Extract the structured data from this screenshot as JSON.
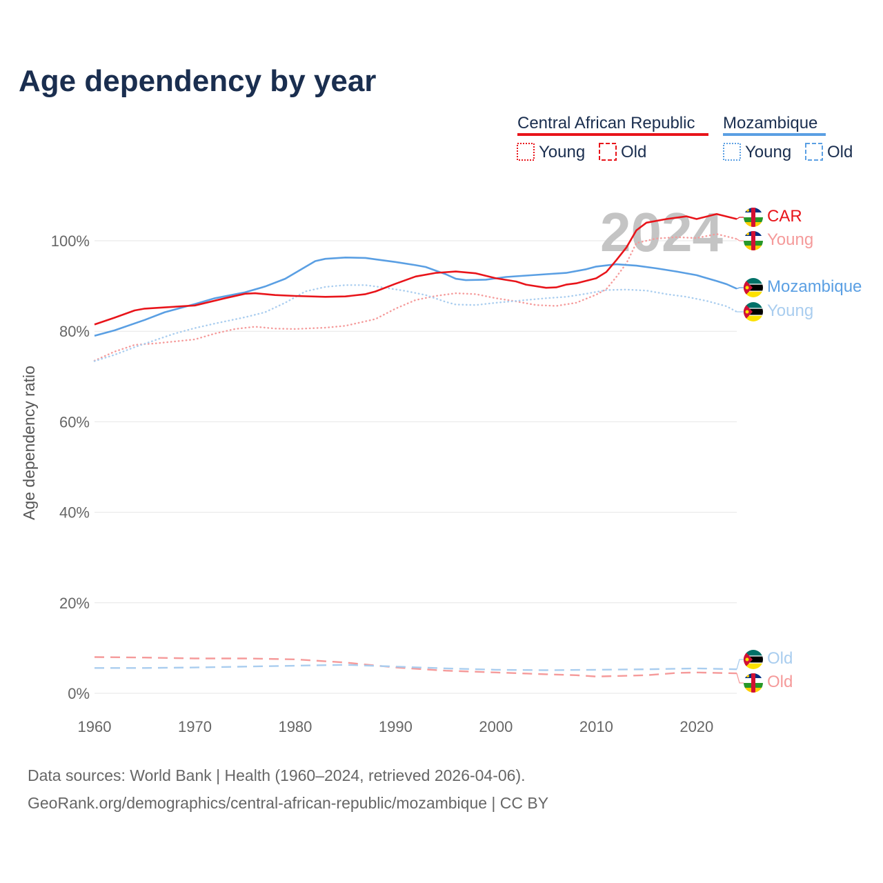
{
  "title": "Age dependency by year",
  "colors": {
    "car": "#e8141a",
    "car_light": "#f59a9a",
    "moz": "#5a9fe3",
    "moz_light": "#a9cdef",
    "grid": "#e6e6e6",
    "title": "#1a2e4f"
  },
  "legend": {
    "groups": [
      {
        "name": "Central African Republic",
        "key": "car",
        "young": "Young",
        "old": "Old"
      },
      {
        "name": "Mozambique",
        "key": "moz",
        "young": "Young",
        "old": "Old"
      }
    ]
  },
  "year_display": "2024",
  "end_labels": {
    "car_total": "CAR",
    "car_young": "Young",
    "moz_total": "Mozambique",
    "moz_young": "Young",
    "moz_old": "Old",
    "car_old": "Old"
  },
  "icons": {
    "car_flag": "central-african-republic-flag-icon",
    "moz_flag": "mozambique-flag-icon"
  },
  "source": {
    "line1": "Data sources: World Bank | Health (1960–2024, retrieved 2026-04-06).",
    "line2": "GeoRank.org/demographics/central-african-republic/mozambique | CC BY"
  },
  "chart_data": {
    "type": "line",
    "title": "Age dependency by year",
    "xlabel": "",
    "ylabel": "Age dependency ratio",
    "xlim": [
      1960,
      2024
    ],
    "ylim": [
      0,
      110
    ],
    "x_ticks": [
      1960,
      1970,
      1980,
      1990,
      2000,
      2010,
      2020
    ],
    "y_ticks": [
      0,
      20,
      40,
      60,
      80,
      100
    ],
    "y_tick_labels": [
      "0%",
      "20%",
      "40%",
      "60%",
      "80%",
      "100%"
    ],
    "grid": true,
    "legend_position": "top-right",
    "series": [
      {
        "name": "Central African Republic",
        "key": "car_total",
        "style": "solid",
        "color": "#e8141a",
        "points": [
          [
            1960,
            81.5
          ],
          [
            1962,
            83.0
          ],
          [
            1964,
            84.6
          ],
          [
            1965,
            85.0
          ],
          [
            1970,
            85.7
          ],
          [
            1973,
            87.3
          ],
          [
            1975,
            88.3
          ],
          [
            1976,
            88.4
          ],
          [
            1978,
            88.0
          ],
          [
            1980,
            87.8
          ],
          [
            1983,
            87.6
          ],
          [
            1985,
            87.7
          ],
          [
            1987,
            88.2
          ],
          [
            1988,
            88.8
          ],
          [
            1990,
            90.5
          ],
          [
            1992,
            92.1
          ],
          [
            1994,
            92.9
          ],
          [
            1996,
            93.2
          ],
          [
            1998,
            92.8
          ],
          [
            2000,
            91.7
          ],
          [
            2002,
            91.0
          ],
          [
            2003,
            90.3
          ],
          [
            2005,
            89.6
          ],
          [
            2006,
            89.7
          ],
          [
            2007,
            90.3
          ],
          [
            2008,
            90.6
          ],
          [
            2010,
            91.7
          ],
          [
            2011,
            93.1
          ],
          [
            2012,
            95.7
          ],
          [
            2013,
            98.5
          ],
          [
            2014,
            102.3
          ],
          [
            2015,
            104.0
          ],
          [
            2017,
            104.8
          ],
          [
            2019,
            105.4
          ],
          [
            2020,
            104.8
          ],
          [
            2022,
            105.9
          ],
          [
            2024,
            104.8
          ]
        ]
      },
      {
        "name": "Central African Republic Young",
        "key": "car_young",
        "style": "dotted",
        "color": "#f59a9a",
        "points": [
          [
            1960,
            73.5
          ],
          [
            1962,
            75.5
          ],
          [
            1964,
            77.0
          ],
          [
            1966,
            77.3
          ],
          [
            1970,
            78.2
          ],
          [
            1972,
            79.5
          ],
          [
            1974,
            80.5
          ],
          [
            1976,
            81.0
          ],
          [
            1978,
            80.6
          ],
          [
            1980,
            80.5
          ],
          [
            1983,
            80.8
          ],
          [
            1985,
            81.2
          ],
          [
            1988,
            82.7
          ],
          [
            1990,
            85.0
          ],
          [
            1992,
            86.9
          ],
          [
            1994,
            87.8
          ],
          [
            1996,
            88.4
          ],
          [
            1998,
            88.2
          ],
          [
            2000,
            87.3
          ],
          [
            2002,
            86.6
          ],
          [
            2004,
            85.8
          ],
          [
            2006,
            85.6
          ],
          [
            2008,
            86.3
          ],
          [
            2010,
            88.1
          ],
          [
            2011,
            89.3
          ],
          [
            2012,
            92.0
          ],
          [
            2013,
            95.0
          ],
          [
            2014,
            99.5
          ],
          [
            2016,
            100.5
          ],
          [
            2018,
            100.8
          ],
          [
            2020,
            100.6
          ],
          [
            2022,
            101.5
          ],
          [
            2024,
            100.4
          ]
        ]
      },
      {
        "name": "Central African Republic Old",
        "key": "car_old",
        "style": "dashed",
        "color": "#f59a9a",
        "points": [
          [
            1960,
            8.0
          ],
          [
            1965,
            7.9
          ],
          [
            1970,
            7.7
          ],
          [
            1975,
            7.7
          ],
          [
            1980,
            7.5
          ],
          [
            1985,
            6.8
          ],
          [
            1990,
            5.7
          ],
          [
            1995,
            5.0
          ],
          [
            2000,
            4.6
          ],
          [
            2005,
            4.2
          ],
          [
            2008,
            4.0
          ],
          [
            2010,
            3.7
          ],
          [
            2015,
            4.0
          ],
          [
            2018,
            4.5
          ],
          [
            2020,
            4.6
          ],
          [
            2024,
            4.4
          ]
        ]
      },
      {
        "name": "Mozambique",
        "key": "moz_total",
        "style": "solid",
        "color": "#5a9fe3",
        "points": [
          [
            1960,
            79.0
          ],
          [
            1962,
            80.2
          ],
          [
            1965,
            82.5
          ],
          [
            1967,
            84.2
          ],
          [
            1970,
            86.0
          ],
          [
            1972,
            87.3
          ],
          [
            1975,
            88.6
          ],
          [
            1977,
            89.9
          ],
          [
            1979,
            91.6
          ],
          [
            1981,
            94.2
          ],
          [
            1982,
            95.5
          ],
          [
            1983,
            96.0
          ],
          [
            1985,
            96.3
          ],
          [
            1987,
            96.2
          ],
          [
            1988,
            95.9
          ],
          [
            1990,
            95.3
          ],
          [
            1992,
            94.6
          ],
          [
            1993,
            94.2
          ],
          [
            1995,
            92.6
          ],
          [
            1996,
            91.6
          ],
          [
            1997,
            91.3
          ],
          [
            1999,
            91.4
          ],
          [
            2001,
            92.0
          ],
          [
            2003,
            92.3
          ],
          [
            2005,
            92.6
          ],
          [
            2007,
            92.9
          ],
          [
            2009,
            93.7
          ],
          [
            2010,
            94.3
          ],
          [
            2012,
            94.8
          ],
          [
            2014,
            94.5
          ],
          [
            2016,
            93.9
          ],
          [
            2018,
            93.2
          ],
          [
            2020,
            92.4
          ],
          [
            2022,
            91.1
          ],
          [
            2023,
            90.4
          ],
          [
            2024,
            89.4
          ]
        ]
      },
      {
        "name": "Mozambique Young",
        "key": "moz_young",
        "style": "dotted",
        "color": "#a9cdef",
        "points": [
          [
            1960,
            73.4
          ],
          [
            1962,
            74.8
          ],
          [
            1964,
            76.5
          ],
          [
            1966,
            78.0
          ],
          [
            1968,
            79.5
          ],
          [
            1970,
            80.7
          ],
          [
            1972,
            81.7
          ],
          [
            1975,
            83.1
          ],
          [
            1977,
            84.2
          ],
          [
            1979,
            86.3
          ],
          [
            1981,
            88.8
          ],
          [
            1983,
            89.8
          ],
          [
            1985,
            90.2
          ],
          [
            1987,
            90.2
          ],
          [
            1989,
            89.6
          ],
          [
            1991,
            88.9
          ],
          [
            1993,
            88.0
          ],
          [
            1995,
            86.5
          ],
          [
            1996,
            85.9
          ],
          [
            1998,
            85.8
          ],
          [
            2000,
            86.3
          ],
          [
            2003,
            86.9
          ],
          [
            2005,
            87.3
          ],
          [
            2007,
            87.6
          ],
          [
            2009,
            88.3
          ],
          [
            2011,
            89.1
          ],
          [
            2013,
            89.2
          ],
          [
            2015,
            89.0
          ],
          [
            2017,
            88.2
          ],
          [
            2019,
            87.6
          ],
          [
            2021,
            86.7
          ],
          [
            2023,
            85.5
          ],
          [
            2024,
            84.3
          ]
        ]
      },
      {
        "name": "Mozambique Old",
        "key": "moz_old",
        "style": "dashed",
        "color": "#a9cdef",
        "points": [
          [
            1960,
            5.6
          ],
          [
            1965,
            5.6
          ],
          [
            1970,
            5.7
          ],
          [
            1975,
            5.9
          ],
          [
            1980,
            6.1
          ],
          [
            1985,
            6.3
          ],
          [
            1990,
            5.9
          ],
          [
            1995,
            5.5
          ],
          [
            2000,
            5.2
          ],
          [
            2005,
            5.1
          ],
          [
            2010,
            5.2
          ],
          [
            2015,
            5.3
          ],
          [
            2020,
            5.5
          ],
          [
            2024,
            5.3
          ]
        ]
      }
    ]
  }
}
